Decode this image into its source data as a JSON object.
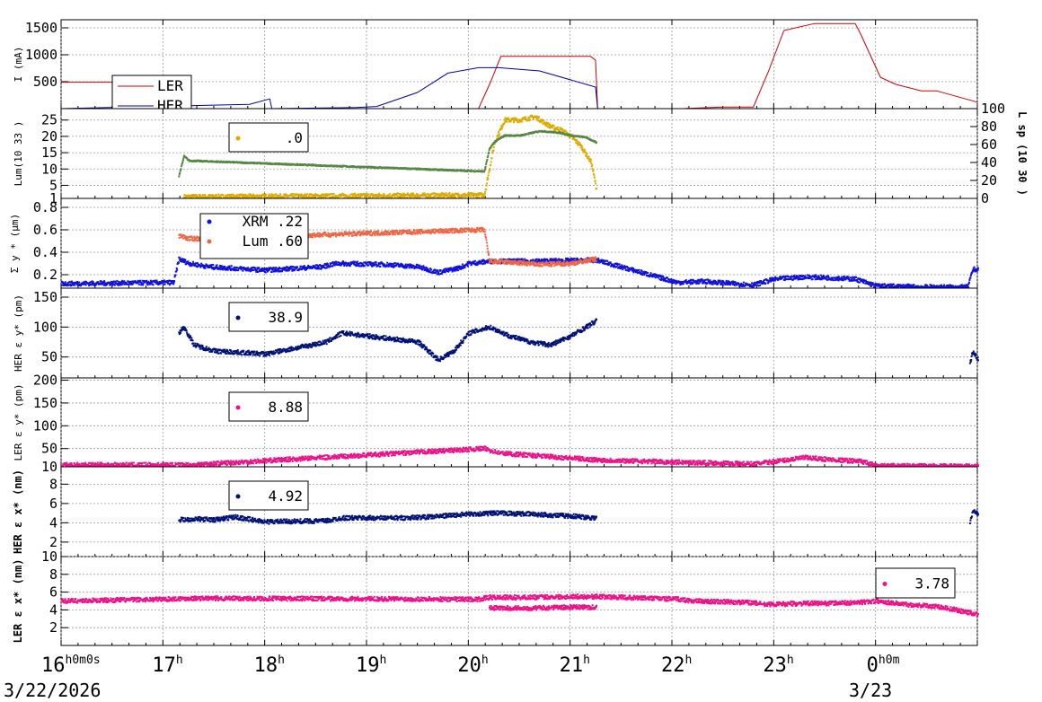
{
  "chart_data": {
    "type": "line",
    "x_axis": {
      "hour_labels": [
        "16",
        "17",
        "18",
        "19",
        "20",
        "21",
        "22",
        "23",
        "0"
      ],
      "first_label_suffix": "0m0s",
      "midnight_suffix": "0m",
      "dates": [
        "3/22/2026",
        "3/23"
      ]
    },
    "panels": [
      {
        "id": "current",
        "ylabel": "I (mA)",
        "yticks": [
          "500",
          "1000",
          "1500"
        ],
        "ylim": [
          0,
          1650
        ],
        "legend": [
          {
            "label": "LER",
            "color": "#cc0000"
          },
          {
            "label": "HER",
            "color": "#0000aa"
          }
        ],
        "series": [
          {
            "name": "LER",
            "color": "#cc0000",
            "x": [
              16.0,
              16.95,
              17.0,
              17.25,
              17.28,
              20.1,
              20.22,
              20.32,
              21.2,
              21.25,
              21.27,
              22.1,
              22.5,
              22.8,
              22.95,
              23.05,
              23.1,
              23.4,
              23.8,
              23.85,
              24.02,
              24.05,
              24.2,
              24.45,
              24.6,
              25.0
            ],
            "y": [
              490,
              490,
              600,
              600,
              0,
              0,
              500,
              970,
              970,
              900,
              0,
              0,
              30,
              30,
              700,
              1200,
              1450,
              1580,
              1580,
              1400,
              700,
              580,
              450,
              330,
              330,
              120
            ]
          },
          {
            "name": "HER",
            "color": "#0000aa",
            "x": [
              16.0,
              17.85,
              18.05,
              18.07,
              18.9,
              19.1,
              19.5,
              19.8,
              20.1,
              20.3,
              20.7,
              21.25,
              21.27,
              25.0
            ],
            "y": [
              0,
              80,
              180,
              0,
              20,
              40,
              300,
              660,
              760,
              760,
              700,
              400,
              0,
              0
            ]
          }
        ]
      },
      {
        "id": "luminosity",
        "ylabel": "Lum(10 33 )",
        "yticks": [
          "1",
          "5",
          "10",
          "15",
          "20",
          "25"
        ],
        "ylim": [
          1,
          28.5
        ],
        "right_ylabel": "L sp (10 30 )",
        "right_yticks": [
          "0",
          "20",
          "40",
          "60",
          "80",
          "100"
        ],
        "right_ylim": [
          0,
          100
        ],
        "legend": [
          {
            "label": ".0",
            "color": "#ddaa00"
          }
        ],
        "series": [
          {
            "name": "Lum",
            "color": "#ddaa00",
            "x": [
              17.2,
              17.25,
              20.15,
              20.25,
              20.35,
              20.5,
              20.65,
              20.8,
              20.9,
              21.0,
              21.1,
              21.2,
              21.25
            ],
            "y": [
              1.5,
              1.5,
              2,
              18,
              25,
              25,
              26,
              23,
              22,
              20,
              17,
              12,
              4
            ]
          },
          {
            "name": "Lsp",
            "color": "#558844",
            "axis": "right",
            "x": [
              17.15,
              17.2,
              17.25,
              20.15,
              20.2,
              20.25,
              20.35,
              20.5,
              20.7,
              20.9,
              21.0,
              21.15,
              21.25
            ],
            "y": [
              25,
              47,
              42,
              30,
              55,
              63,
              70,
              70,
              75,
              73,
              70,
              68,
              62
            ]
          }
        ]
      },
      {
        "id": "sigma",
        "ylabel": "Σ y * (μm)",
        "yticks": [
          "0.2",
          "0.4",
          "0.6",
          "0.8"
        ],
        "ylim": [
          0.08,
          0.88
        ],
        "legend": [
          {
            "label": "XRM  .22",
            "color": "#1111dd"
          },
          {
            "label": "Lum  .60",
            "color": "#ee6644"
          }
        ],
        "series": [
          {
            "name": "XRM",
            "color": "#1111dd",
            "x": [
              16.0,
              17.1,
              17.15,
              17.25,
              17.45,
              18.0,
              18.55,
              18.7,
              19.2,
              19.5,
              19.7,
              19.9,
              20.0,
              20.12,
              20.2,
              20.6,
              21.25,
              22.05,
              22.3,
              22.6,
              22.8,
              23.0,
              23.3,
              23.6,
              23.8,
              24.0,
              24.5,
              24.9,
              24.95,
              25.0
            ],
            "y": [
              0.12,
              0.13,
              0.34,
              0.3,
              0.27,
              0.24,
              0.27,
              0.3,
              0.29,
              0.27,
              0.22,
              0.26,
              0.3,
              0.31,
              0.32,
              0.32,
              0.33,
              0.13,
              0.14,
              0.12,
              0.11,
              0.16,
              0.18,
              0.17,
              0.16,
              0.1,
              0.09,
              0.09,
              0.25,
              0.24
            ]
          },
          {
            "name": "Lum",
            "color": "#ee6644",
            "x": [
              17.15,
              17.25,
              20.15,
              20.2,
              20.4,
              20.7,
              21.0,
              21.25
            ],
            "y": [
              0.55,
              0.52,
              0.6,
              0.32,
              0.31,
              0.29,
              0.3,
              0.34
            ]
          }
        ]
      },
      {
        "id": "her_ey",
        "ylabel": "HER ε y* (pm)",
        "yticks": [
          "50",
          "100",
          "150"
        ],
        "ylim": [
          15,
          165
        ],
        "legend": [
          {
            "label": "38.9",
            "color": "#001177"
          }
        ],
        "series": [
          {
            "name": "HER εy",
            "color": "#001177",
            "x": [
              17.15,
              17.2,
              17.3,
              17.5,
              18.0,
              18.6,
              18.75,
              19.0,
              19.5,
              19.7,
              19.85,
              20.0,
              20.2,
              20.4,
              20.6,
              20.8,
              21.0,
              21.25
            ],
            "y": [
              90,
              100,
              70,
              60,
              55,
              75,
              90,
              85,
              75,
              45,
              60,
              90,
              100,
              85,
              75,
              70,
              85,
              110
            ]
          },
          {
            "name": "HER εy end",
            "color": "#001177",
            "x": [
              24.92,
              24.95,
              25.0
            ],
            "y": [
              40,
              60,
              45
            ]
          }
        ]
      },
      {
        "id": "ler_ey",
        "ylabel": "LER ε y* (pm)",
        "yticks": [
          "10",
          "50",
          "100",
          "150",
          "200"
        ],
        "ylim": [
          10,
          205
        ],
        "legend": [
          {
            "label": "8.88",
            "color": "#ee1188"
          }
        ],
        "series": [
          {
            "name": "LER εy",
            "color": "#ee1188",
            "x": [
              16.0,
              17.25,
              20.15,
              20.3,
              21.25,
              22.05,
              22.5,
              22.8,
              23.3,
              23.6,
              23.85,
              24.0,
              25.0
            ],
            "y": [
              14,
              14,
              50,
              40,
              25,
              20,
              18,
              16,
              30,
              25,
              22,
              12,
              11
            ]
          }
        ]
      },
      {
        "id": "her_ex",
        "ylabel": "HER ε x* (nm)",
        "yticks": [
          "2",
          "4",
          "6",
          "8"
        ],
        "ylim": [
          0.5,
          9.8
        ],
        "legend": [
          {
            "label": "4.92",
            "color": "#001177"
          }
        ],
        "series": [
          {
            "name": "HER εx",
            "color": "#001177",
            "x": [
              17.15,
              17.3,
              17.5,
              17.7,
              18.0,
              18.6,
              18.75,
              19.3,
              19.6,
              20.0,
              20.3,
              20.6,
              21.0,
              21.25
            ],
            "y": [
              4.3,
              4.4,
              4.3,
              4.6,
              4.1,
              4.2,
              4.5,
              4.5,
              4.6,
              4.9,
              5.0,
              4.9,
              4.7,
              4.5
            ]
          },
          {
            "name": "HER εx end",
            "color": "#001177",
            "x": [
              24.92,
              24.95,
              25.0
            ],
            "y": [
              4.0,
              5.2,
              5.0
            ]
          }
        ]
      },
      {
        "id": "ler_ex",
        "ylabel": "LER ε x* (nm)",
        "yticks": [
          "2",
          "4",
          "6",
          "8",
          "10"
        ],
        "ylim": [
          0,
          10
        ],
        "legend": [
          {
            "label": "3.78",
            "color": "#ee1188"
          }
        ],
        "series": [
          {
            "name": "LER εx",
            "color": "#ee1188",
            "x": [
              16.0,
              16.5,
              17.0,
              17.25,
              20.1,
              20.2,
              20.5,
              21.0,
              21.25,
              22.05,
              22.2,
              22.5,
              22.8,
              22.9,
              23.2,
              23.8,
              24.0,
              24.3,
              24.6,
              25.0
            ],
            "y": [
              5.0,
              5.1,
              5.2,
              5.3,
              5.2,
              5.4,
              5.4,
              5.5,
              5.5,
              5.2,
              5.0,
              4.9,
              4.8,
              4.6,
              4.7,
              4.8,
              5.0,
              4.6,
              4.4,
              3.5
            ]
          },
          {
            "name": "LER εx low",
            "color": "#ee1188",
            "x": [
              20.2,
              20.6,
              21.0,
              21.25
            ],
            "y": [
              4.2,
              4.2,
              4.3,
              4.3
            ]
          }
        ]
      }
    ]
  }
}
